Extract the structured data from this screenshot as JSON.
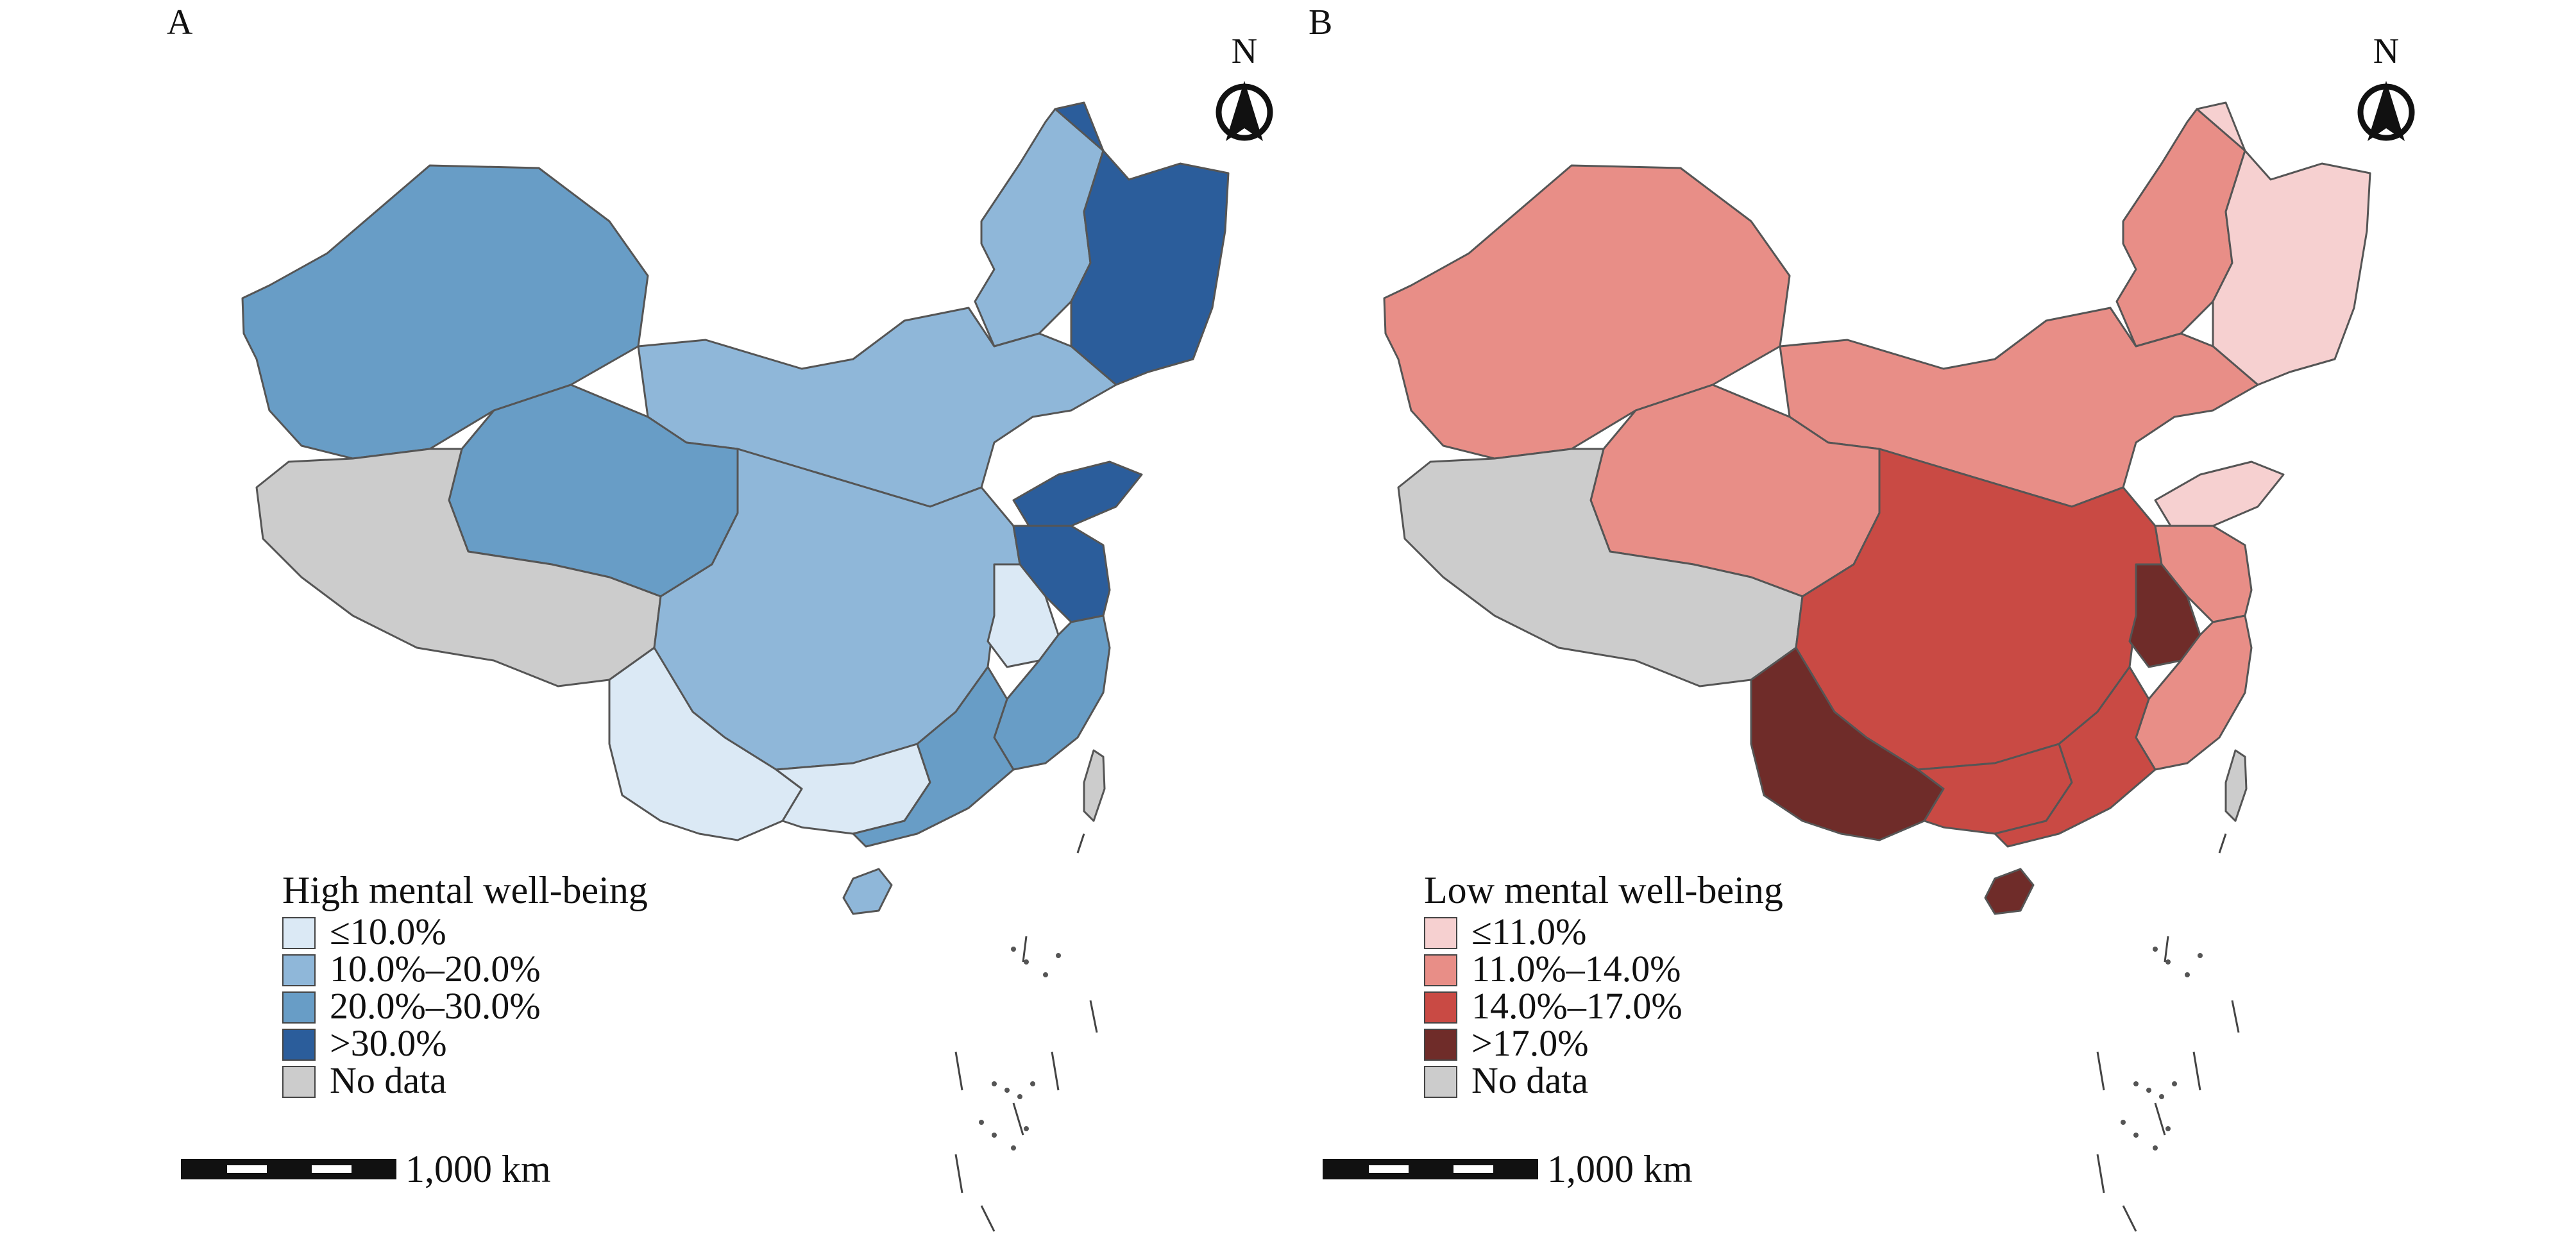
{
  "panels": [
    {
      "label": "A",
      "north": "N",
      "legend": {
        "title": "High mental well-being",
        "items": [
          {
            "label": "≤10.0%",
            "color": "#dbe9f5"
          },
          {
            "label": "10.0%–20.0%",
            "color": "#8fb7d9"
          },
          {
            "label": "20.0%–30.0%",
            "color": "#689dc6"
          },
          {
            "label": ">30.0%",
            "color": "#2b5d9b"
          },
          {
            "label": "No data",
            "color": "#cccccc"
          }
        ]
      },
      "scale": "1,000 km",
      "region_classes": {
        "northwest": 2,
        "northeast_strip": 1,
        "northeast": 3,
        "north_central": 1,
        "plateau": 2,
        "tibet": 4,
        "central": 1,
        "shandong": 3,
        "jiangsu": 3,
        "anhui": 0,
        "east_coast": 2,
        "southwest": 0,
        "guangxi": 0,
        "guangdong": 2,
        "hainan": 1,
        "taiwan": 4
      }
    },
    {
      "label": "B",
      "north": "N",
      "legend": {
        "title": "Low mental well-being",
        "items": [
          {
            "label": "≤11.0%",
            "color": "#f6d0d0"
          },
          {
            "label": "11.0%–14.0%",
            "color": "#e88e87"
          },
          {
            "label": "14.0%–17.0%",
            "color": "#c94a44"
          },
          {
            "label": ">17.0%",
            "color": "#6f2c29"
          },
          {
            "label": "No data",
            "color": "#cccccc"
          }
        ]
      },
      "scale": "1,000 km",
      "region_classes": {
        "northwest": 1,
        "northeast_strip": 1,
        "northeast": 0,
        "north_central": 1,
        "plateau": 1,
        "tibet": 4,
        "central": 2,
        "shandong": 0,
        "jiangsu": 1,
        "anhui": 3,
        "east_coast": 1,
        "southwest": 3,
        "guangxi": 2,
        "guangdong": 2,
        "hainan": 3,
        "taiwan": 4
      }
    }
  ]
}
